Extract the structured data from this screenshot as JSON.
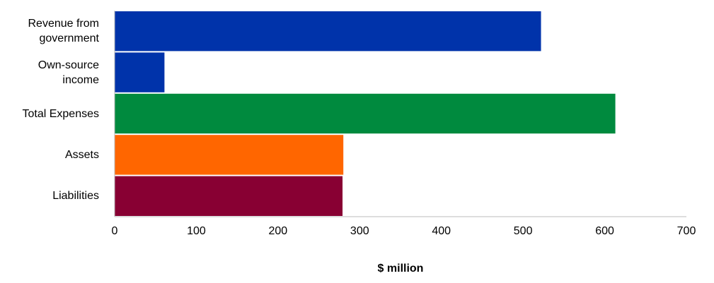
{
  "chart_data": {
    "type": "barh",
    "categories": [
      "Revenue from government",
      "Own-source income",
      "Total Expenses",
      "Assets",
      "Liabilities"
    ],
    "values": [
      522,
      61,
      613,
      280,
      279
    ],
    "colors": [
      "#0033aa",
      "#0033aa",
      "#008a3e",
      "#ff6600",
      "#880033"
    ],
    "xlim": [
      0,
      700
    ],
    "xticks": [
      0,
      100,
      200,
      300,
      400,
      500,
      600,
      700
    ],
    "xlabel": "$ million",
    "grid": false
  }
}
